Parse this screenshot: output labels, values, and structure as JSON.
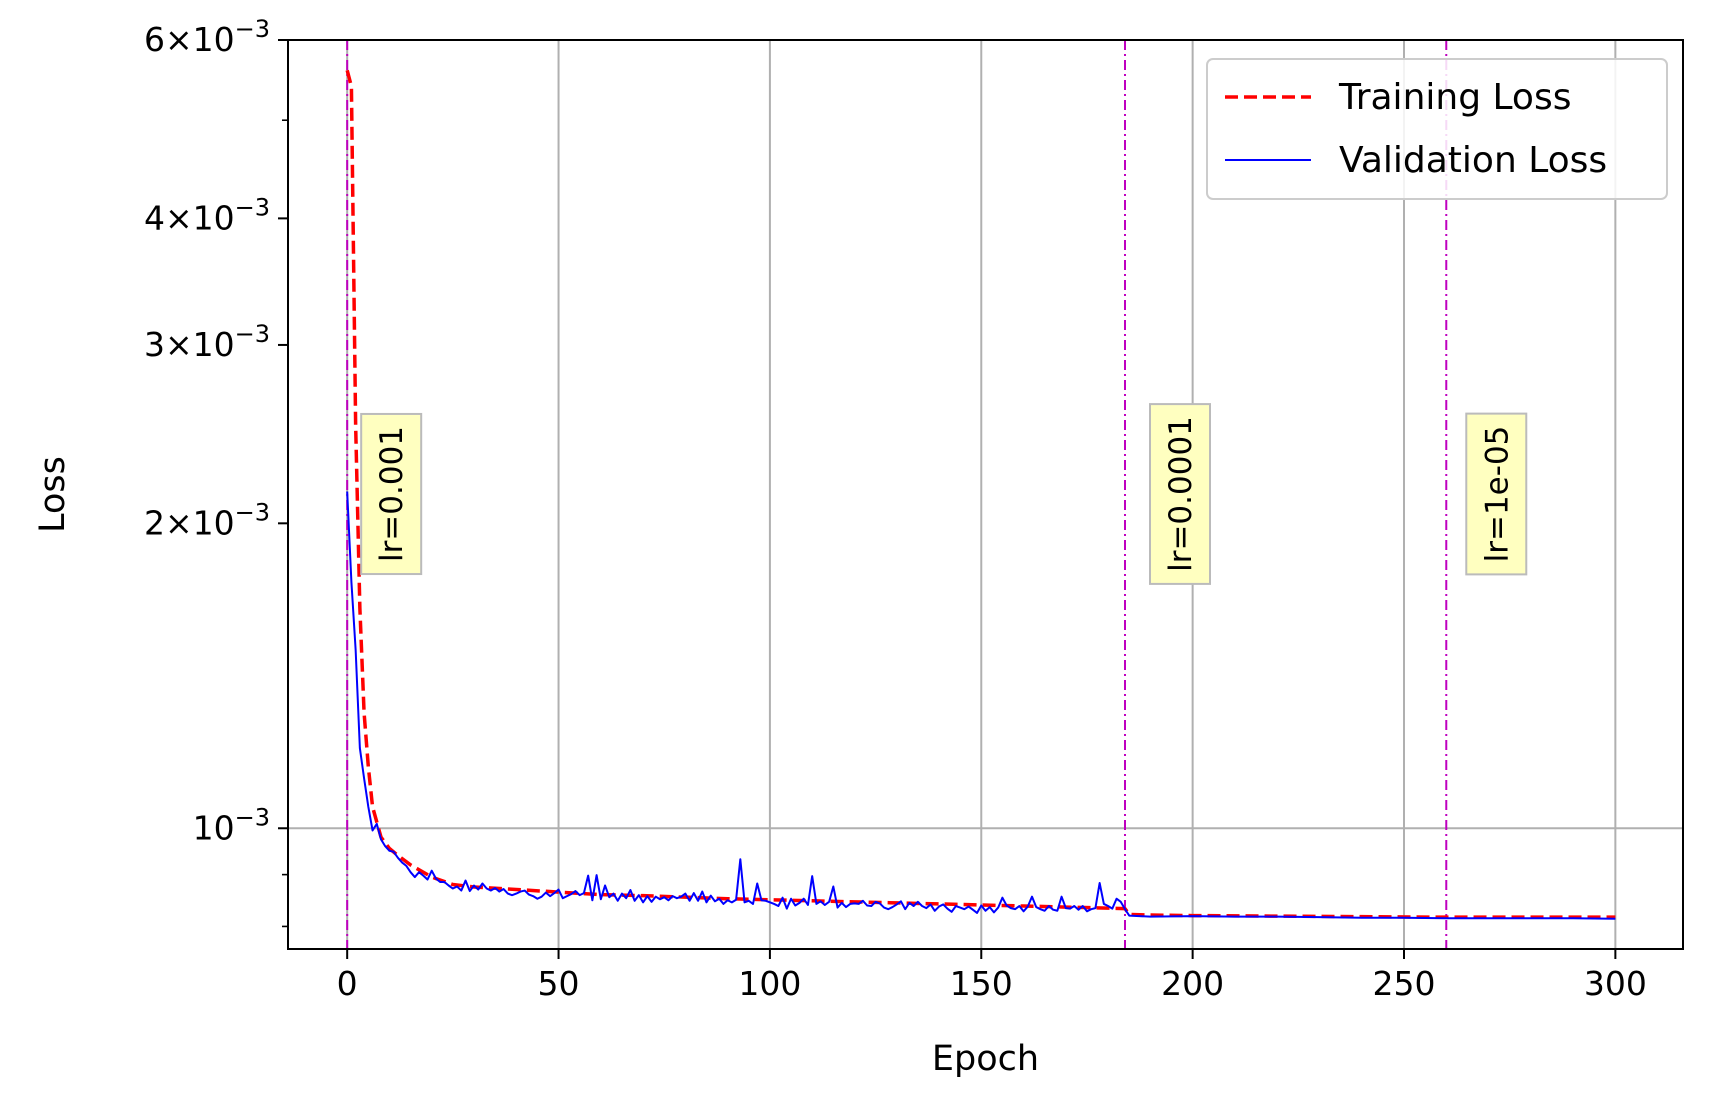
{
  "chart_data": {
    "type": "line",
    "xlabel": "Epoch",
    "ylabel": "Loss",
    "xlim": [
      -14,
      316
    ],
    "ylim": [
      0.00076,
      0.006
    ],
    "yscale": "log",
    "grid": true,
    "legend_position": "top-right",
    "x_ticks": [
      {
        "value": 0,
        "label": "0"
      },
      {
        "value": 50,
        "label": "50"
      },
      {
        "value": 100,
        "label": "100"
      },
      {
        "value": 150,
        "label": "150"
      },
      {
        "value": 200,
        "label": "200"
      },
      {
        "value": 250,
        "label": "250"
      },
      {
        "value": 300,
        "label": "300"
      }
    ],
    "y_ticks": [
      {
        "value": 0.001,
        "mantissa": "",
        "exponent": "−3"
      },
      {
        "value": 0.002,
        "mantissa": "2",
        "exponent": "−3"
      },
      {
        "value": 0.003,
        "mantissa": "3",
        "exponent": "−3"
      },
      {
        "value": 0.004,
        "mantissa": "4",
        "exponent": "−3"
      },
      {
        "value": 0.006,
        "mantissa": "6",
        "exponent": "−3"
      }
    ],
    "y_minor_ticks": [
      0.0008,
      0.0009,
      0.005
    ],
    "series": [
      {
        "name": "Training Loss",
        "color": "#ff0000",
        "style": "dashed",
        "x": [
          0,
          1,
          2,
          3,
          4,
          5,
          6,
          8,
          10,
          12,
          15,
          20,
          25,
          30,
          40,
          50,
          60,
          70,
          80,
          90,
          100,
          110,
          120,
          130,
          140,
          150,
          160,
          170,
          180,
          184,
          185,
          190,
          200,
          220,
          240,
          260,
          280,
          300
        ],
        "y": [
          0.0056,
          0.0054,
          0.0025,
          0.00165,
          0.0013,
          0.00115,
          0.00105,
          0.00098,
          0.000955,
          0.00094,
          0.00092,
          0.000895,
          0.00088,
          0.000875,
          0.00087,
          0.000865,
          0.00086,
          0.000858,
          0.000855,
          0.000852,
          0.00085,
          0.000848,
          0.000846,
          0.000844,
          0.000842,
          0.00084,
          0.000838,
          0.000836,
          0.000834,
          0.000833,
          0.000822,
          0.000821,
          0.00082,
          0.000819,
          0.000818,
          0.000817,
          0.000817,
          0.000817
        ]
      },
      {
        "name": "Validation Loss",
        "color": "#0000ff",
        "style": "solid",
        "x": [
          0,
          1,
          2,
          3,
          4,
          5,
          6,
          7,
          8,
          9,
          10,
          11,
          12,
          13,
          14,
          15,
          16,
          17,
          18,
          19,
          20,
          21,
          22,
          23,
          24,
          25,
          26,
          27,
          28,
          29,
          30,
          31,
          32,
          33,
          34,
          35,
          36,
          37,
          38,
          39,
          40,
          41,
          42,
          43,
          44,
          45,
          46,
          47,
          48,
          49,
          50,
          51,
          52,
          53,
          54,
          55,
          56,
          57,
          58,
          59,
          60,
          61,
          62,
          63,
          64,
          65,
          66,
          67,
          68,
          69,
          70,
          71,
          72,
          73,
          74,
          75,
          76,
          77,
          78,
          79,
          80,
          81,
          82,
          83,
          84,
          85,
          86,
          87,
          88,
          89,
          90,
          91,
          92,
          93,
          94,
          95,
          96,
          97,
          98,
          99,
          100,
          101,
          102,
          103,
          104,
          105,
          106,
          107,
          108,
          109,
          110,
          111,
          112,
          113,
          114,
          115,
          116,
          117,
          118,
          119,
          120,
          121,
          122,
          123,
          124,
          125,
          126,
          127,
          128,
          129,
          130,
          131,
          132,
          133,
          134,
          135,
          136,
          137,
          138,
          139,
          140,
          141,
          142,
          143,
          144,
          145,
          146,
          147,
          148,
          149,
          150,
          151,
          152,
          153,
          154,
          155,
          156,
          157,
          158,
          159,
          160,
          161,
          162,
          163,
          164,
          165,
          166,
          167,
          168,
          169,
          170,
          171,
          172,
          173,
          174,
          175,
          176,
          177,
          178,
          179,
          180,
          181,
          182,
          183,
          184,
          185,
          190,
          200,
          210,
          220,
          230,
          240,
          250,
          260,
          270,
          280,
          290,
          300
        ],
        "y": [
          0.00215,
          0.00175,
          0.0015,
          0.0012,
          0.00112,
          0.00105,
          0.000995,
          0.00101,
          0.000975,
          0.00096,
          0.00095,
          0.000948,
          0.000935,
          0.000925,
          0.000918,
          0.000905,
          0.000895,
          0.000905,
          0.000898,
          0.00089,
          0.000908,
          0.000892,
          0.000885,
          0.000885,
          0.000878,
          0.000872,
          0.000876,
          0.000868,
          0.000888,
          0.000867,
          0.000878,
          0.00087,
          0.000882,
          0.000872,
          0.000868,
          0.000873,
          0.000866,
          0.000871,
          0.000862,
          0.000859,
          0.000862,
          0.000866,
          0.000868,
          0.00086,
          0.000857,
          0.000852,
          0.000856,
          0.000864,
          0.000857,
          0.000863,
          0.00087,
          0.000853,
          0.000857,
          0.000861,
          0.000867,
          0.000859,
          0.000863,
          0.000898,
          0.000849,
          0.000899,
          0.000851,
          0.000878,
          0.000855,
          0.000862,
          0.000848,
          0.000862,
          0.000853,
          0.000869,
          0.000848,
          0.000859,
          0.000845,
          0.000857,
          0.000846,
          0.000856,
          0.000851,
          0.000855,
          0.000849,
          0.000857,
          0.000853,
          0.000856,
          0.000862,
          0.000848,
          0.000863,
          0.000848,
          0.000866,
          0.000845,
          0.000858,
          0.000847,
          0.000852,
          0.000842,
          0.000849,
          0.000845,
          0.00085,
          0.000932,
          0.000845,
          0.000848,
          0.000842,
          0.000882,
          0.000849,
          0.000848,
          0.000845,
          0.000842,
          0.000838,
          0.000854,
          0.000833,
          0.000852,
          0.000839,
          0.000844,
          0.000852,
          0.00084,
          0.000897,
          0.000842,
          0.000847,
          0.00084,
          0.000846,
          0.000876,
          0.000835,
          0.000844,
          0.000836,
          0.000842,
          0.000843,
          0.000842,
          0.000848,
          0.000839,
          0.000838,
          0.000846,
          0.000843,
          0.000835,
          0.000832,
          0.000836,
          0.000841,
          0.000847,
          0.000832,
          0.000844,
          0.000838,
          0.000846,
          0.000838,
          0.000834,
          0.000841,
          0.000829,
          0.000837,
          0.000841,
          0.000833,
          0.000827,
          0.000838,
          0.000835,
          0.000832,
          0.000837,
          0.000831,
          0.000825,
          0.000839,
          0.000829,
          0.000836,
          0.000826,
          0.000835,
          0.000854,
          0.000839,
          0.000834,
          0.000832,
          0.000838,
          0.000828,
          0.000837,
          0.000856,
          0.000836,
          0.000832,
          0.000829,
          0.000838,
          0.000831,
          0.000829,
          0.000856,
          0.000834,
          0.000833,
          0.000838,
          0.000831,
          0.000838,
          0.000828,
          0.000832,
          0.000834,
          0.000883,
          0.000842,
          0.000838,
          0.000833,
          0.000852,
          0.000846,
          0.000832,
          0.00082,
          0.000818,
          0.000819,
          0.000818,
          0.000818,
          0.000817,
          0.000816,
          0.000816,
          0.000815,
          0.000815,
          0.000815,
          0.000815,
          0.000814
        ]
      }
    ],
    "vlines": [
      {
        "x": 0,
        "color": "#bf00bf",
        "label": "lr=0.001"
      },
      {
        "x": 184,
        "color": "#bf00bf",
        "label": "lr=0.0001"
      },
      {
        "x": 260,
        "color": "#bf00bf",
        "label": "lr=1e-05"
      }
    ],
    "legend": [
      {
        "label": "Training Loss",
        "color": "#ff0000",
        "style": "dashed"
      },
      {
        "label": "Validation Loss",
        "color": "#0000ff",
        "style": "solid"
      }
    ]
  }
}
